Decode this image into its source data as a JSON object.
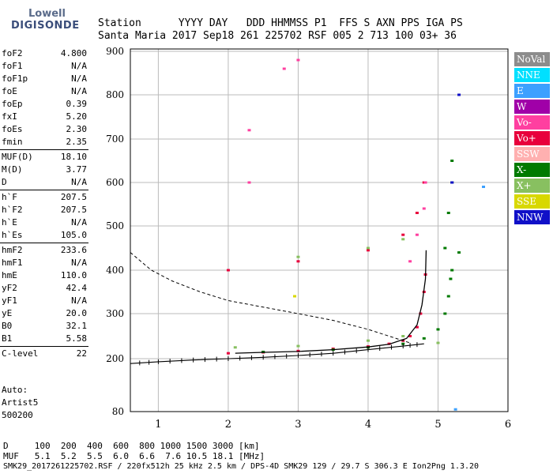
{
  "logo": {
    "top": "Lowell",
    "bottom": "DIGISONDE"
  },
  "header": {
    "row1": "Station      YYYY DAY   DDD HHMMSS P1  FFS S AXN PPS IGA PS",
    "row2": "Santa Maria 2017 Sep18 261 225702 RSF 005 2 713 100 03+ 36"
  },
  "params": [
    [
      [
        "foF2",
        "4.800"
      ],
      [
        "foF1",
        "N/A"
      ],
      [
        "foF1p",
        "N/A"
      ],
      [
        "foE",
        "N/A"
      ],
      [
        "foEp",
        "0.39"
      ],
      [
        "fxI",
        "5.20"
      ],
      [
        "foEs",
        "2.30"
      ],
      [
        "fmin",
        "2.35"
      ]
    ],
    [
      [
        "MUF(D)",
        "18.10"
      ],
      [
        "M(D)",
        "3.77"
      ],
      [
        "D",
        "N/A"
      ]
    ],
    [
      [
        "h`F",
        "207.5"
      ],
      [
        "h`F2",
        "207.5"
      ],
      [
        "h`E",
        "N/A"
      ],
      [
        "h`Es",
        "105.0"
      ]
    ],
    [
      [
        "hmF2",
        "233.6"
      ],
      [
        "hmF1",
        "N/A"
      ],
      [
        "hmE",
        "110.0"
      ],
      [
        "yF2",
        "42.4"
      ],
      [
        "yF1",
        "N/A"
      ],
      [
        "yE",
        "20.0"
      ],
      [
        "B0",
        "32.1"
      ],
      [
        "B1",
        "5.58"
      ]
    ],
    [
      [
        "C-level",
        "22"
      ]
    ]
  ],
  "autoscaling": {
    "line1": "Auto:",
    "line2": "Artist5",
    "line3": "500200"
  },
  "legend": [
    {
      "label": "NoVal",
      "color": "#8c8c8c"
    },
    {
      "label": "NNE",
      "color": "#00e0ff"
    },
    {
      "label": "E",
      "color": "#3ca0ff"
    },
    {
      "label": "W",
      "color": "#a000a8"
    },
    {
      "label": "Vo-",
      "color": "#ff3fa0"
    },
    {
      "label": "Vo+",
      "color": "#e8003c"
    },
    {
      "label": "SSW",
      "color": "#ffb0b0"
    },
    {
      "label": "X-",
      "color": "#007a00"
    },
    {
      "label": "X+",
      "color": "#88c060"
    },
    {
      "label": "SSE",
      "color": "#d8d800"
    },
    {
      "label": "NNW",
      "color": "#1010c8"
    }
  ],
  "chart_data": {
    "type": "scatter",
    "xlabel": "",
    "ylabel": "",
    "xlim": [
      0.6,
      6.0
    ],
    "ylim": [
      80,
      900
    ],
    "xticks": [
      1,
      2,
      3,
      4,
      5,
      6
    ],
    "yticks": [
      80,
      200,
      300,
      400,
      500,
      600,
      700,
      800,
      900
    ],
    "series": [
      {
        "name": "Vo+",
        "color": "#e8003c",
        "points": [
          [
            2.0,
            212
          ],
          [
            2.5,
            214
          ],
          [
            3.0,
            217
          ],
          [
            3.5,
            222
          ],
          [
            4.0,
            227
          ],
          [
            4.3,
            233
          ],
          [
            4.5,
            240
          ],
          [
            4.6,
            250
          ],
          [
            4.7,
            270
          ],
          [
            4.75,
            300
          ],
          [
            4.8,
            350
          ],
          [
            4.82,
            390
          ],
          [
            2.0,
            400
          ],
          [
            3.0,
            420
          ],
          [
            4.0,
            445
          ],
          [
            4.5,
            480
          ],
          [
            4.7,
            530
          ],
          [
            4.8,
            600
          ]
        ]
      },
      {
        "name": "X-",
        "color": "#007a00",
        "points": [
          [
            2.5,
            215
          ],
          [
            3.5,
            220
          ],
          [
            4.0,
            225
          ],
          [
            4.5,
            233
          ],
          [
            4.8,
            245
          ],
          [
            5.0,
            265
          ],
          [
            5.1,
            300
          ],
          [
            5.15,
            340
          ],
          [
            5.18,
            380
          ],
          [
            5.2,
            400
          ],
          [
            5.1,
            450
          ],
          [
            5.15,
            530
          ],
          [
            5.2,
            600
          ],
          [
            5.2,
            650
          ],
          [
            5.3,
            440
          ]
        ]
      },
      {
        "name": "X+",
        "color": "#88c060",
        "points": [
          [
            2.1,
            225
          ],
          [
            3.0,
            228
          ],
          [
            4.0,
            240
          ],
          [
            4.5,
            250
          ],
          [
            5.0,
            235
          ],
          [
            3.0,
            430
          ],
          [
            4.0,
            450
          ],
          [
            4.5,
            470
          ]
        ]
      },
      {
        "name": "Vo-",
        "color": "#ff3fa0",
        "points": [
          [
            4.6,
            420
          ],
          [
            4.7,
            480
          ],
          [
            4.8,
            540
          ],
          [
            4.82,
            600
          ],
          [
            2.3,
            600
          ],
          [
            2.3,
            720
          ],
          [
            2.8,
            860
          ],
          [
            3.0,
            880
          ]
        ]
      },
      {
        "name": "SSE",
        "color": "#d8d800",
        "points": [
          [
            2.95,
            340
          ]
        ]
      },
      {
        "name": "NNW",
        "color": "#1010c8",
        "points": [
          [
            5.2,
            600
          ],
          [
            5.3,
            800
          ]
        ]
      },
      {
        "name": "E",
        "color": "#3ca0ff",
        "points": [
          [
            5.25,
            85
          ],
          [
            5.65,
            590
          ]
        ]
      }
    ],
    "profile": {
      "points": [
        [
          0.6,
          189
        ],
        [
          1.0,
          193
        ],
        [
          1.5,
          197
        ],
        [
          2.0,
          200
        ],
        [
          2.5,
          203
        ],
        [
          3.0,
          207
        ],
        [
          3.5,
          212
        ],
        [
          4.0,
          220
        ],
        [
          4.5,
          228
        ],
        [
          4.8,
          233
        ]
      ]
    },
    "extraordinary_trace": {
      "points": [
        [
          2.1,
          212
        ],
        [
          2.5,
          214
        ],
        [
          3.0,
          216
        ],
        [
          3.5,
          220
        ],
        [
          4.0,
          226
        ],
        [
          4.3,
          232
        ],
        [
          4.55,
          245
        ],
        [
          4.7,
          275
        ],
        [
          4.77,
          320
        ],
        [
          4.82,
          380
        ],
        [
          4.83,
          445
        ]
      ]
    },
    "muf_curve": {
      "points": [
        [
          0.6,
          440
        ],
        [
          0.9,
          400
        ],
        [
          1.2,
          375
        ],
        [
          1.6,
          350
        ],
        [
          2.0,
          330
        ],
        [
          2.5,
          315
        ],
        [
          3.0,
          300
        ],
        [
          3.5,
          285
        ],
        [
          4.0,
          265
        ],
        [
          4.4,
          245
        ],
        [
          4.6,
          235
        ]
      ]
    }
  },
  "footer": {
    "line1": "D     100  200  400  600  800 1000 1500 3000 [km]",
    "line2": "MUF   5.1  5.2  5.5  6.0  6.6  7.6 10.5 18.1 [MHz]",
    "line3": "SMK29_2017261225702.RSF / 220fx512h 25 kHz 2.5 km / DPS-4D SMK29 129 / 29.7 S 306.3 E Ion2Png 1.3.20"
  }
}
